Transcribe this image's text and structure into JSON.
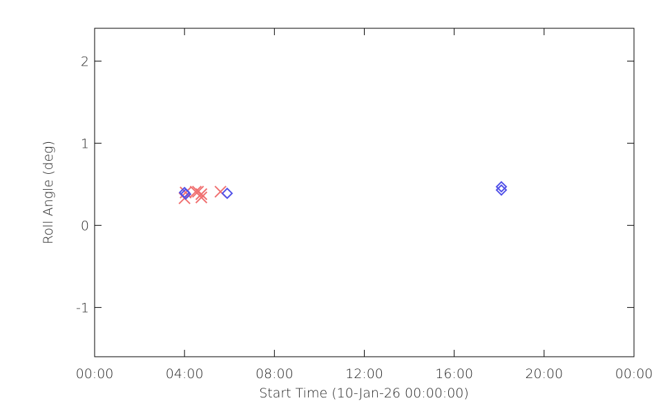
{
  "chart_data": {
    "type": "scatter",
    "xlabel": "Start Time (10-Jan-26 00:00:00)",
    "ylabel": "Roll Angle (deg)",
    "xlim": [
      0,
      24
    ],
    "xticks": [
      {
        "value": 0,
        "label": "00:00"
      },
      {
        "value": 4,
        "label": "04:00"
      },
      {
        "value": 8,
        "label": "08:00"
      },
      {
        "value": 12,
        "label": "12:00"
      },
      {
        "value": 16,
        "label": "16:00"
      },
      {
        "value": 20,
        "label": "20:00"
      },
      {
        "value": 24,
        "label": "00:00"
      }
    ],
    "ylim": [
      -1.6,
      2.4
    ],
    "yticks": [
      -1,
      0,
      1,
      2
    ],
    "series": [
      {
        "marker": "x",
        "color": "#f07070",
        "x": [
          4.0,
          4.05,
          4.5,
          4.6,
          4.75,
          4.75,
          5.6
        ],
        "values": [
          0.33,
          0.4,
          0.41,
          0.41,
          0.38,
          0.34,
          0.41
        ]
      },
      {
        "marker": "diamond",
        "color": "#5050e8",
        "x": [
          4.0,
          4.05,
          5.9,
          18.1,
          18.1
        ],
        "values": [
          0.4,
          0.38,
          0.39,
          0.47,
          0.43
        ]
      }
    ]
  }
}
